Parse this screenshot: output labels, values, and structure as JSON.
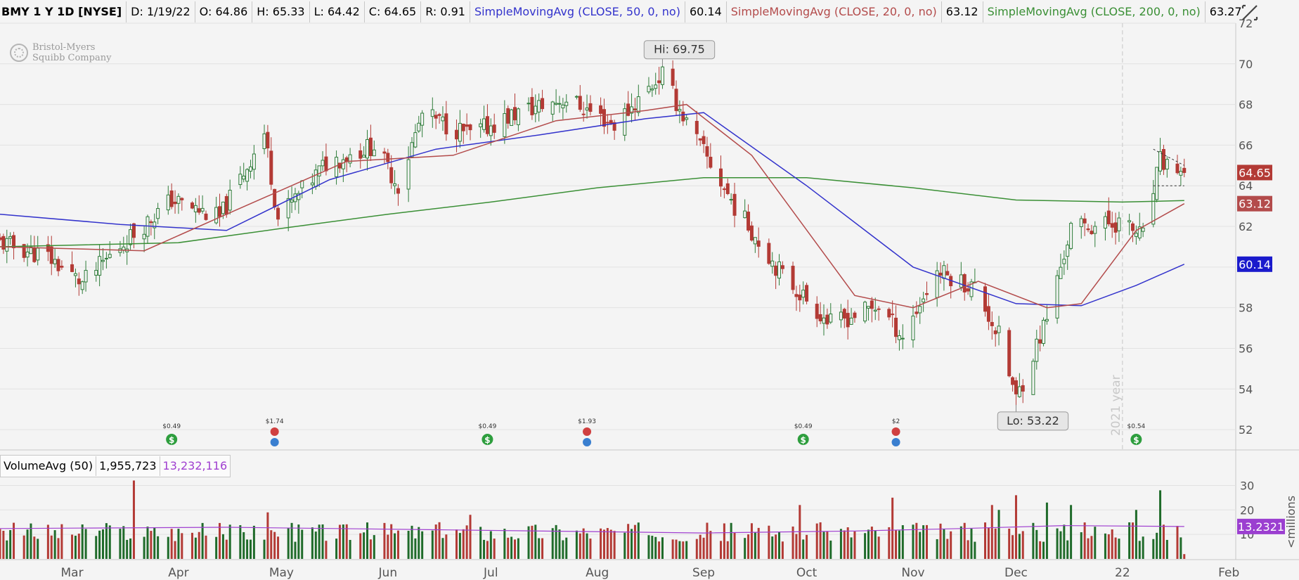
{
  "header": {
    "symbol": "BMY 1 Y 1D [NYSE]",
    "date": "D: 1/19/22",
    "open": "O: 64.86",
    "high": "H: 65.33",
    "low": "L: 64.42",
    "close": "C: 64.65",
    "range": "R: 0.91",
    "sma50_label": "SimpleMovingAvg (CLOSE, 50, 0, no)",
    "sma50_value": "60.14",
    "sma20_label": "SimpleMovingAvg (CLOSE, 20, 0, no)",
    "sma20_value": "63.12",
    "sma200_label": "SimpleMovingAvg (CLOSE, 200, 0, no)",
    "sma200_value": "63.27"
  },
  "logo": {
    "line1": "Bristol-Myers",
    "line2": "Squibb Company"
  },
  "volume_header": {
    "label": "VolumeAvg (50)",
    "volume": "1,955,723",
    "avg": "13,232,116"
  },
  "colors": {
    "up": "#2f7d3a",
    "down": "#b33a35",
    "sma50": "#3333cc",
    "sma20": "#b34b4b",
    "sma200": "#3a8f35",
    "volavg": "#a040d0",
    "bg": "#f4f4f4",
    "grid": "#e2e2e2"
  },
  "icons": {
    "drawing_tool": "drawing-tool-icon",
    "dividend": "dividend-icon",
    "earnings": "earnings-icon"
  },
  "chart_data": {
    "type": "candlestick",
    "ylim": [
      51,
      72
    ],
    "y_ticks": [
      "52",
      "54",
      "56",
      "58",
      "60",
      "62",
      "64",
      "66",
      "68",
      "70",
      "72"
    ],
    "x_tick_labels": [
      "Mar",
      "Apr",
      "May",
      "Jun",
      "Jul",
      "Aug",
      "Sep",
      "Oct",
      "Nov",
      "Dec",
      "22",
      "Feb"
    ],
    "year_marker": "2021 year",
    "high_annotation": "Hi: 69.75",
    "low_annotation": "Lo: 53.22",
    "price_tags": {
      "close": "64.65",
      "sma20": "63.12",
      "sma50": "60.14"
    },
    "key_closes": [
      [
        "2021-02-08",
        61.2
      ],
      [
        "2021-02-22",
        60.5
      ],
      [
        "2021-03-04",
        59.2
      ],
      [
        "2021-03-16",
        61.2
      ],
      [
        "2021-03-30",
        63.3
      ],
      [
        "2021-04-13",
        62.4
      ],
      [
        "2021-04-26",
        66.6
      ],
      [
        "2021-04-30",
        62.4
      ],
      [
        "2021-05-14",
        65.1
      ],
      [
        "2021-05-28",
        66.0
      ],
      [
        "2021-06-04",
        64.0
      ],
      [
        "2021-06-11",
        67.5
      ],
      [
        "2021-06-25",
        66.5
      ],
      [
        "2021-07-09",
        67.6
      ],
      [
        "2021-07-23",
        68.3
      ],
      [
        "2021-08-06",
        67.0
      ],
      [
        "2021-08-20",
        69.5
      ],
      [
        "2021-08-27",
        67.1
      ],
      [
        "2021-09-10",
        63.0
      ],
      [
        "2021-09-24",
        59.6
      ],
      [
        "2021-10-08",
        57.2
      ],
      [
        "2021-10-22",
        58.1
      ],
      [
        "2021-10-29",
        56.6
      ],
      [
        "2021-11-08",
        59.8
      ],
      [
        "2021-11-19",
        59.0
      ],
      [
        "2021-11-26",
        56.6
      ],
      [
        "2021-12-01",
        53.5
      ],
      [
        "2021-12-10",
        57.5
      ],
      [
        "2021-12-17",
        61.9
      ],
      [
        "2021-12-31",
        62.2
      ],
      [
        "2022-01-07",
        61.5
      ],
      [
        "2022-01-12",
        65.2
      ],
      [
        "2022-01-19",
        64.65
      ]
    ],
    "sma20_points": [
      [
        "2021-02-08",
        61.0
      ],
      [
        "2021-03-22",
        60.8
      ],
      [
        "2021-04-15",
        62.6
      ],
      [
        "2021-05-20",
        65.2
      ],
      [
        "2021-06-20",
        65.5
      ],
      [
        "2021-07-20",
        67.2
      ],
      [
        "2021-08-15",
        67.7
      ],
      [
        "2021-08-27",
        68.0
      ],
      [
        "2021-09-15",
        65.5
      ],
      [
        "2021-10-15",
        58.6
      ],
      [
        "2021-11-01",
        58.0
      ],
      [
        "2021-11-20",
        59.3
      ],
      [
        "2021-12-10",
        58.0
      ],
      [
        "2021-12-20",
        58.2
      ],
      [
        "2022-01-05",
        61.8
      ],
      [
        "2022-01-19",
        63.12
      ]
    ],
    "sma50_points": [
      [
        "2021-02-08",
        62.6
      ],
      [
        "2021-03-15",
        62.1
      ],
      [
        "2021-04-15",
        61.8
      ],
      [
        "2021-05-15",
        64.3
      ],
      [
        "2021-06-15",
        65.8
      ],
      [
        "2021-07-15",
        66.5
      ],
      [
        "2021-08-15",
        67.3
      ],
      [
        "2021-09-01",
        67.6
      ],
      [
        "2021-10-01",
        64.0
      ],
      [
        "2021-11-01",
        60.0
      ],
      [
        "2021-12-01",
        58.2
      ],
      [
        "2021-12-20",
        58.1
      ],
      [
        "2022-01-05",
        59.1
      ],
      [
        "2022-01-19",
        60.14
      ]
    ],
    "sma200_points": [
      [
        "2021-02-08",
        61.0
      ],
      [
        "2021-04-01",
        61.2
      ],
      [
        "2021-05-01",
        61.9
      ],
      [
        "2021-06-01",
        62.6
      ],
      [
        "2021-07-01",
        63.2
      ],
      [
        "2021-08-01",
        63.9
      ],
      [
        "2021-09-01",
        64.4
      ],
      [
        "2021-10-01",
        64.4
      ],
      [
        "2021-11-01",
        63.9
      ],
      [
        "2021-12-01",
        63.3
      ],
      [
        "2022-01-01",
        63.2
      ],
      [
        "2022-01-19",
        63.27
      ]
    ],
    "dividends": [
      {
        "date": "2021-03-30",
        "label": "$0.49"
      },
      {
        "date": "2021-06-30",
        "label": "$0.49"
      },
      {
        "date": "2021-09-30",
        "label": "$0.49"
      },
      {
        "date": "2022-01-05",
        "label": "$0.54"
      }
    ],
    "earnings": [
      {
        "date": "2021-04-29",
        "label": "$1.74"
      },
      {
        "date": "2021-07-29",
        "label": "$1.93"
      },
      {
        "date": "2021-10-27",
        "label": "$2"
      }
    ],
    "volume": {
      "ylim": [
        0,
        33
      ],
      "y_ticks": [
        "10",
        "20",
        "30"
      ],
      "unit_label": "<millions",
      "avg_tag": "13.2321",
      "spikes": [
        [
          "2021-03-19",
          32
        ],
        [
          "2021-04-27",
          19
        ],
        [
          "2021-06-25",
          18
        ],
        [
          "2021-09-29",
          22
        ],
        [
          "2021-10-26",
          25
        ],
        [
          "2021-11-24",
          22
        ],
        [
          "2021-11-26",
          20
        ],
        [
          "2021-12-01",
          26
        ],
        [
          "2021-12-10",
          23
        ],
        [
          "2021-12-17",
          22
        ],
        [
          "2022-01-12",
          28
        ],
        [
          "2022-01-05",
          20
        ]
      ]
    }
  }
}
